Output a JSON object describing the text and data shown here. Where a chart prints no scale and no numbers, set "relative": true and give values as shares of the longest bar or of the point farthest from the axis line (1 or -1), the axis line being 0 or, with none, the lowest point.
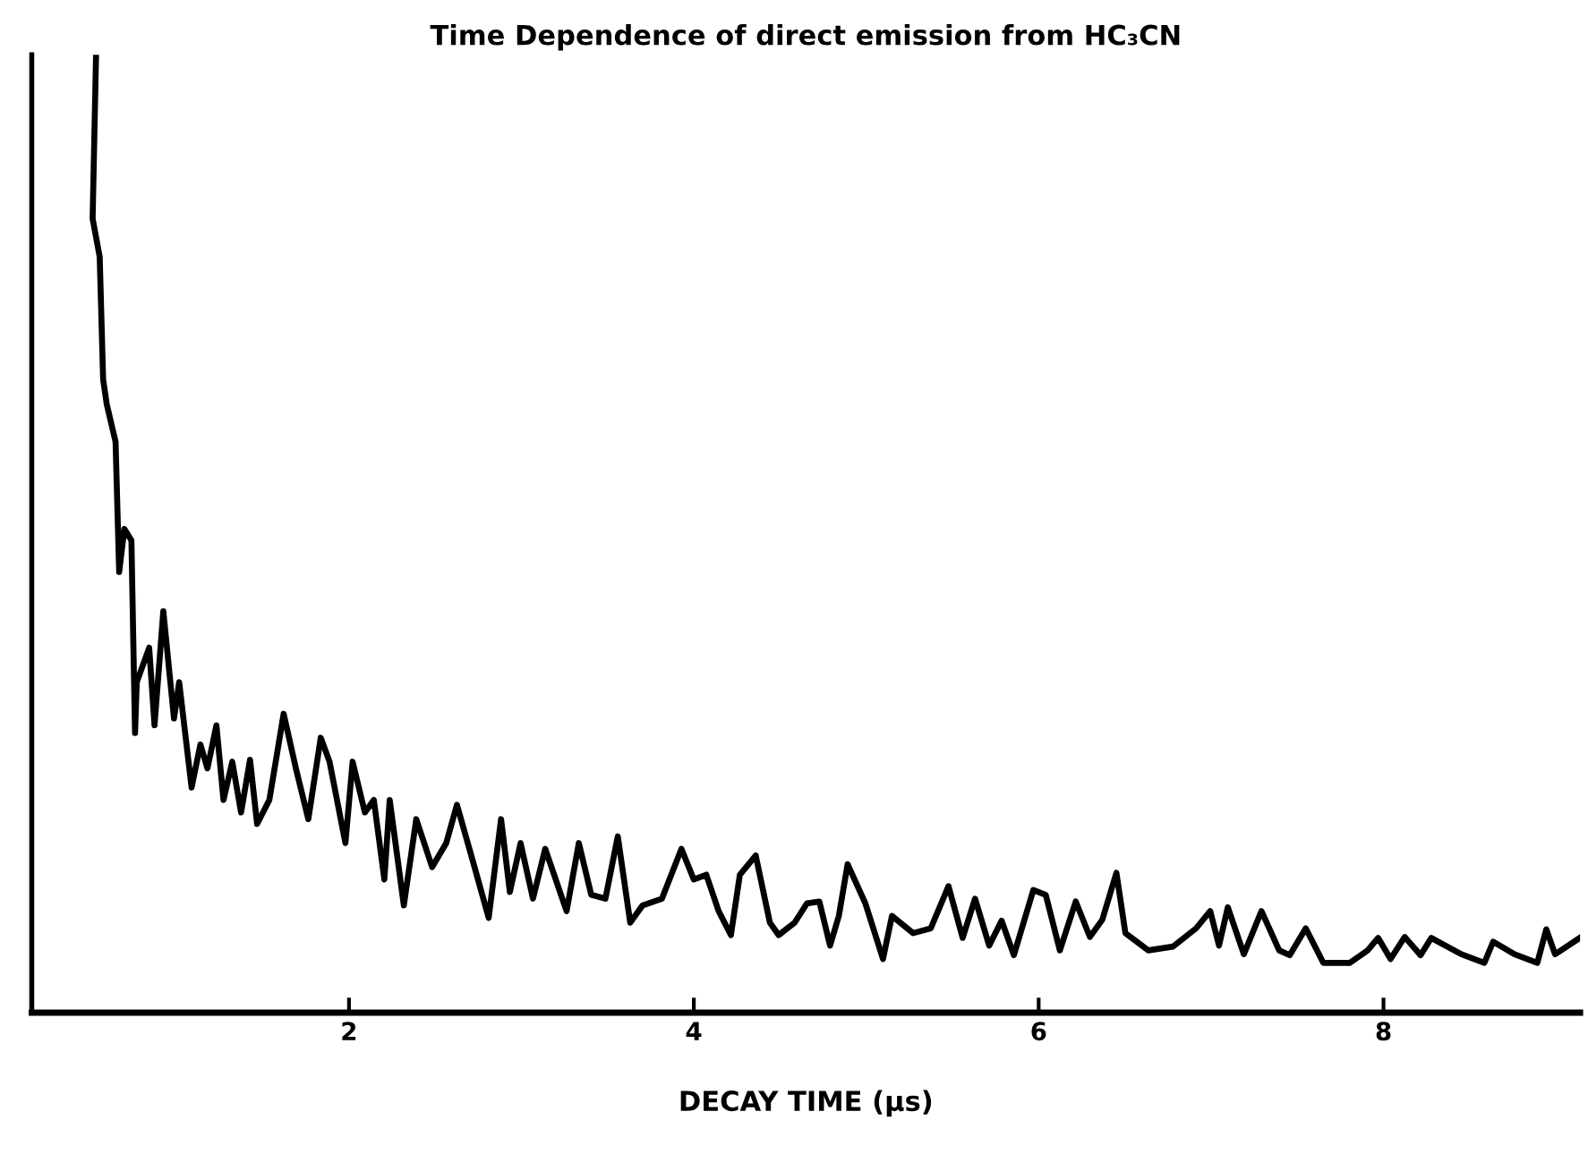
{
  "chart_data": {
    "type": "line",
    "relative": true,
    "title": "Time Dependence of direct emission from HC₃CN",
    "xlabel": "DECAY TIME (µs)",
    "xlim": [
      0.16,
      9.14
    ],
    "xticks": [
      2,
      4,
      6,
      8
    ],
    "grid": false,
    "legend": false,
    "marker": "none",
    "line_style": "solid",
    "series": [
      {
        "color": "#000000",
        "x": [
          0.533,
          0.513,
          0.554,
          0.574,
          0.595,
          0.646,
          0.667,
          0.697,
          0.738,
          0.759,
          0.769,
          0.841,
          0.872,
          0.923,
          0.985,
          1.015,
          1.087,
          1.138,
          1.179,
          1.231,
          1.272,
          1.323,
          1.374,
          1.426,
          1.467,
          1.538,
          1.621,
          1.692,
          1.764,
          1.836,
          1.887,
          1.979,
          2.021,
          2.092,
          2.144,
          2.205,
          2.236,
          2.318,
          2.39,
          2.482,
          2.564,
          2.626,
          2.728,
          2.81,
          2.882,
          2.933,
          2.995,
          3.067,
          3.138,
          3.262,
          3.333,
          3.405,
          3.487,
          3.559,
          3.631,
          3.703,
          3.815,
          3.928,
          4.0,
          4.072,
          4.144,
          4.215,
          4.267,
          4.359,
          4.441,
          4.492,
          4.585,
          4.656,
          4.728,
          4.79,
          4.841,
          4.892,
          4.995,
          5.097,
          5.149,
          5.272,
          5.374,
          5.477,
          5.559,
          5.631,
          5.713,
          5.785,
          5.856,
          5.969,
          6.041,
          6.123,
          6.215,
          6.297,
          6.369,
          6.451,
          6.503,
          6.636,
          6.779,
          6.913,
          6.995,
          7.046,
          7.097,
          7.19,
          7.292,
          7.395,
          7.456,
          7.549,
          7.651,
          7.805,
          7.908,
          7.969,
          8.041,
          8.123,
          8.215,
          8.277,
          8.451,
          8.585,
          8.636,
          8.759,
          8.892,
          8.944,
          8.995,
          9.138
        ],
        "values": [
          1.0,
          0.829,
          0.789,
          0.661,
          0.635,
          0.596,
          0.46,
          0.505,
          0.493,
          0.292,
          0.345,
          0.381,
          0.3,
          0.419,
          0.307,
          0.345,
          0.235,
          0.28,
          0.255,
          0.3,
          0.222,
          0.262,
          0.209,
          0.264,
          0.197,
          0.222,
          0.312,
          0.255,
          0.202,
          0.287,
          0.262,
          0.177,
          0.262,
          0.209,
          0.222,
          0.139,
          0.222,
          0.112,
          0.202,
          0.152,
          0.177,
          0.217,
          0.152,
          0.099,
          0.202,
          0.126,
          0.177,
          0.119,
          0.171,
          0.106,
          0.177,
          0.123,
          0.119,
          0.184,
          0.094,
          0.112,
          0.119,
          0.171,
          0.139,
          0.144,
          0.106,
          0.081,
          0.144,
          0.164,
          0.094,
          0.081,
          0.094,
          0.114,
          0.116,
          0.07,
          0.101,
          0.155,
          0.114,
          0.056,
          0.101,
          0.083,
          0.088,
          0.132,
          0.078,
          0.119,
          0.07,
          0.096,
          0.06,
          0.128,
          0.123,
          0.065,
          0.116,
          0.079,
          0.097,
          0.146,
          0.083,
          0.065,
          0.069,
          0.088,
          0.106,
          0.07,
          0.11,
          0.061,
          0.106,
          0.065,
          0.06,
          0.088,
          0.052,
          0.052,
          0.065,
          0.078,
          0.056,
          0.079,
          0.06,
          0.078,
          0.061,
          0.052,
          0.074,
          0.061,
          0.052,
          0.087,
          0.061,
          0.078
        ]
      }
    ]
  }
}
